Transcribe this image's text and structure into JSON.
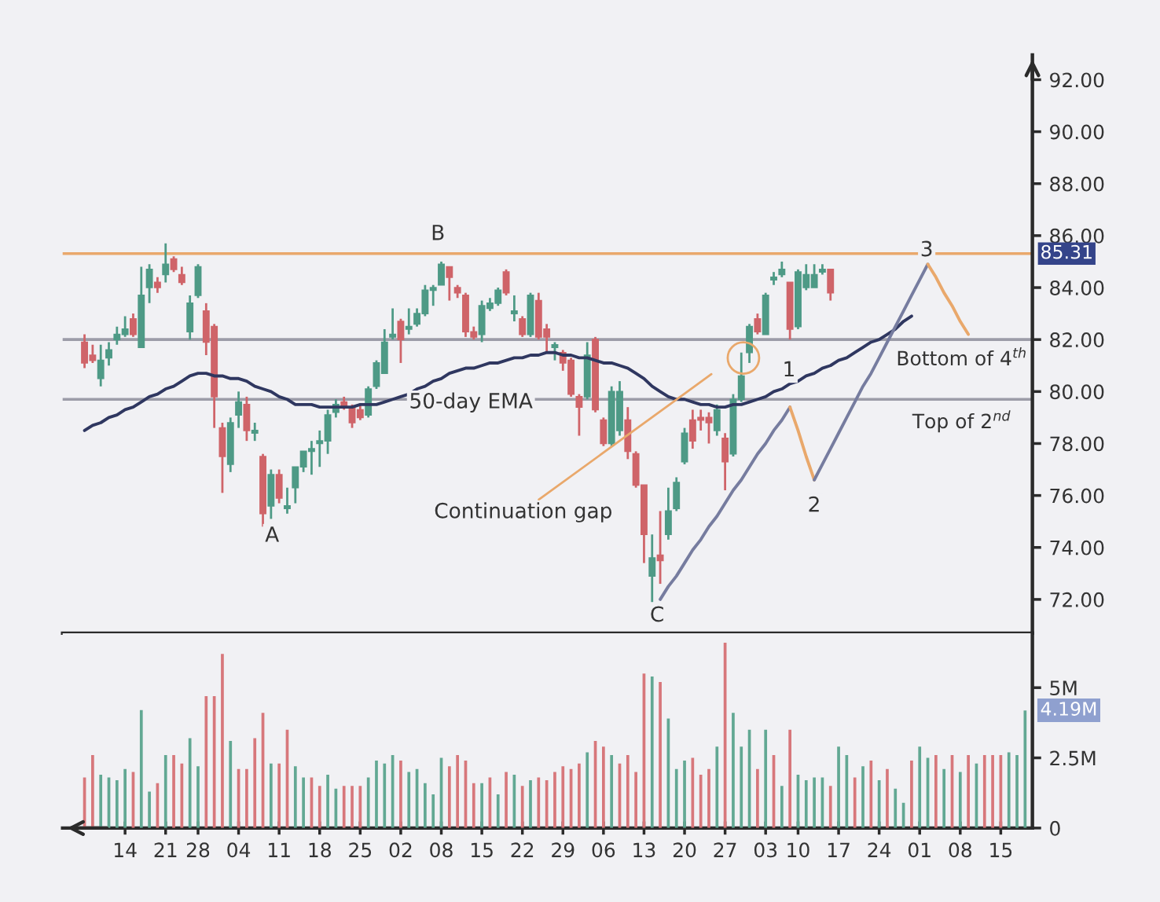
{
  "chart_data": [
    {
      "type": "candlestick",
      "categories": [
        null,
        null,
        null,
        null,
        null,
        "14",
        null,
        null,
        null,
        null,
        "21",
        null,
        null,
        null,
        "28",
        null,
        null,
        null,
        null,
        "04",
        null,
        null,
        null,
        null,
        "11",
        null,
        null,
        null,
        null,
        "18",
        null,
        null,
        null,
        null,
        "25",
        null,
        null,
        null,
        null,
        "02",
        null,
        null,
        null,
        null,
        "08",
        null,
        null,
        null,
        null,
        "15",
        null,
        null,
        null,
        null,
        "22",
        null,
        null,
        null,
        null,
        "29",
        null,
        null,
        null,
        null,
        "06",
        null,
        null,
        null,
        null,
        "13",
        null,
        null,
        null,
        null,
        "20",
        null,
        null,
        null,
        null,
        "27",
        null,
        null,
        null,
        null,
        "03",
        null,
        null,
        null,
        "10",
        null,
        null,
        null,
        null,
        "17",
        null,
        null,
        null,
        null,
        "24",
        null,
        null,
        null,
        null,
        "01",
        null,
        null,
        null,
        null,
        "08",
        null,
        null,
        null,
        null,
        "15",
        null,
        null,
        null
      ],
      "ohlc": [
        [
          81.9,
          82.2,
          80.9,
          81.1
        ],
        [
          81.4,
          81.8,
          81.1,
          81.2
        ],
        [
          80.5,
          81.8,
          80.2,
          81.2
        ],
        [
          81.3,
          81.9,
          81.0,
          81.6
        ],
        [
          82.0,
          82.5,
          81.8,
          82.2
        ],
        [
          82.2,
          82.9,
          82.1,
          82.4
        ],
        [
          82.8,
          83.0,
          82.1,
          82.2
        ],
        [
          81.7,
          84.8,
          81.7,
          83.7
        ],
        [
          84.0,
          84.9,
          83.4,
          84.7
        ],
        [
          84.2,
          84.4,
          83.8,
          84.0
        ],
        [
          84.5,
          85.7,
          84.2,
          84.9
        ],
        [
          85.1,
          85.2,
          84.6,
          84.7
        ],
        [
          84.5,
          84.8,
          84.1,
          84.2
        ],
        [
          82.3,
          83.7,
          82.0,
          83.4
        ],
        [
          83.7,
          84.9,
          83.6,
          84.8
        ],
        [
          83.1,
          83.4,
          81.4,
          81.9
        ],
        [
          82.5,
          82.6,
          78.6,
          79.8
        ],
        [
          78.6,
          78.8,
          76.1,
          77.5
        ],
        [
          77.2,
          79.0,
          76.9,
          78.8
        ],
        [
          79.1,
          80.0,
          78.6,
          79.6
        ],
        [
          79.5,
          79.8,
          78.1,
          78.5
        ],
        [
          78.4,
          78.8,
          78.1,
          78.5
        ],
        [
          77.5,
          77.6,
          74.8,
          75.3
        ],
        [
          75.6,
          77.0,
          75.1,
          76.8
        ],
        [
          76.8,
          77.0,
          75.7,
          75.9
        ],
        [
          75.5,
          76.3,
          75.3,
          75.6
        ],
        [
          76.3,
          77.1,
          75.7,
          77.1
        ],
        [
          77.1,
          77.7,
          76.9,
          77.7
        ],
        [
          77.7,
          78.1,
          76.8,
          77.8
        ],
        [
          78.0,
          78.5,
          77.1,
          78.1
        ],
        [
          78.1,
          79.3,
          77.6,
          79.1
        ],
        [
          79.2,
          79.7,
          79.0,
          79.5
        ],
        [
          79.6,
          79.8,
          79.3,
          79.4
        ],
        [
          79.4,
          79.5,
          78.6,
          78.8
        ],
        [
          79.3,
          79.5,
          78.9,
          79.0
        ],
        [
          79.1,
          80.2,
          79.0,
          80.1
        ],
        [
          80.2,
          81.2,
          80.1,
          81.1
        ],
        [
          80.7,
          82.4,
          80.7,
          81.9
        ],
        [
          82.1,
          83.2,
          82.0,
          82.2
        ],
        [
          82.7,
          82.8,
          81.1,
          82.0
        ],
        [
          82.4,
          83.2,
          82.2,
          82.5
        ],
        [
          82.6,
          83.2,
          82.5,
          83.0
        ],
        [
          83.0,
          84.1,
          82.9,
          83.9
        ],
        [
          83.9,
          84.1,
          83.3,
          84.0
        ],
        [
          84.1,
          85.0,
          84.1,
          84.9
        ],
        [
          84.8,
          84.8,
          83.5,
          84.4
        ],
        [
          84.0,
          84.1,
          83.6,
          83.8
        ],
        [
          83.7,
          83.8,
          82.1,
          82.3
        ],
        [
          82.3,
          82.5,
          82.0,
          82.1
        ],
        [
          82.2,
          83.5,
          81.9,
          83.3
        ],
        [
          83.2,
          83.6,
          83.1,
          83.4
        ],
        [
          83.4,
          84.0,
          83.3,
          83.9
        ],
        [
          84.6,
          84.7,
          83.7,
          83.8
        ],
        [
          83.0,
          83.7,
          82.7,
          83.1
        ],
        [
          82.8,
          82.9,
          82.1,
          82.2
        ],
        [
          82.2,
          83.8,
          82.1,
          83.7
        ],
        [
          83.5,
          83.8,
          82.0,
          82.1
        ],
        [
          82.4,
          82.6,
          81.5,
          82.1
        ],
        [
          81.7,
          81.9,
          81.2,
          81.8
        ],
        [
          81.5,
          81.6,
          80.8,
          81.1
        ],
        [
          81.2,
          81.3,
          79.8,
          79.9
        ],
        [
          79.8,
          79.9,
          78.3,
          79.4
        ],
        [
          79.8,
          81.9,
          79.7,
          81.4
        ],
        [
          82.0,
          82.1,
          79.2,
          79.3
        ],
        [
          78.9,
          79.0,
          77.9,
          78.0
        ],
        [
          78.0,
          80.2,
          77.9,
          80.0
        ],
        [
          78.5,
          80.4,
          78.3,
          80.0
        ],
        [
          78.9,
          79.4,
          77.4,
          77.7
        ],
        [
          77.6,
          77.7,
          76.3,
          76.4
        ],
        [
          76.4,
          76.4,
          73.4,
          74.5
        ],
        [
          72.9,
          74.5,
          71.9,
          73.6
        ],
        [
          73.7,
          75.4,
          72.6,
          73.5
        ],
        [
          74.5,
          76.3,
          74.3,
          75.4
        ],
        [
          75.5,
          76.7,
          75.4,
          76.5
        ],
        [
          77.3,
          78.6,
          77.2,
          78.4
        ],
        [
          78.9,
          79.3,
          77.8,
          78.1
        ],
        [
          79.0,
          79.3,
          78.5,
          78.9
        ],
        [
          79.0,
          79.2,
          78.0,
          78.8
        ],
        [
          78.5,
          79.5,
          78.3,
          79.3
        ],
        [
          78.2,
          78.4,
          76.2,
          77.3
        ],
        [
          77.6,
          79.9,
          77.5,
          79.7
        ],
        [
          79.7,
          81.5,
          79.6,
          80.6
        ],
        [
          81.5,
          82.6,
          81.1,
          82.5
        ],
        [
          82.8,
          83.0,
          82.2,
          82.3
        ],
        [
          82.2,
          83.8,
          82.2,
          83.7
        ],
        [
          84.3,
          84.6,
          84.1,
          84.4
        ],
        [
          84.5,
          85.0,
          84.4,
          84.7
        ],
        [
          84.2,
          84.2,
          82.0,
          82.4
        ],
        [
          82.5,
          84.7,
          82.4,
          84.6
        ],
        [
          84.0,
          84.9,
          83.9,
          84.5
        ],
        [
          84.0,
          84.9,
          84.0,
          84.5
        ],
        [
          84.6,
          84.9,
          84.5,
          84.7
        ],
        [
          84.7,
          84.7,
          83.5,
          83.8
        ],
        null,
        null,
        null,
        null,
        null,
        null,
        null,
        null,
        null,
        null,
        null,
        null,
        null,
        null,
        null,
        null,
        null,
        null,
        null,
        null,
        null,
        null,
        null,
        null
      ],
      "colors": [
        "#cf6469",
        "#cf6469",
        "#4e9a86",
        "#4e9a86",
        "#4e9a86",
        "#4e9a86",
        "#cf6469",
        "#4e9a86",
        "#4e9a86",
        "#cf6469",
        "#4e9a86",
        "#cf6469",
        "#cf6469",
        "#4e9a86",
        "#4e9a86",
        "#cf6469",
        "#cf6469",
        "#cf6469",
        "#4e9a86",
        "#4e9a86",
        "#cf6469",
        "#4e9a86",
        "#cf6469",
        "#4e9a86",
        "#cf6469",
        "#4e9a86",
        "#4e9a86",
        "#4e9a86",
        "#4e9a86",
        "#4e9a86",
        "#4e9a86",
        "#4e9a86",
        "#cf6469",
        "#cf6469",
        "#cf6469",
        "#4e9a86",
        "#4e9a86",
        "#4e9a86",
        "#4e9a86",
        "#cf6469",
        "#4e9a86",
        "#4e9a86",
        "#4e9a86",
        "#4e9a86",
        "#4e9a86",
        "#cf6469",
        "#cf6469",
        "#cf6469",
        "#cf6469",
        "#4e9a86",
        "#4e9a86",
        "#4e9a86",
        "#cf6469",
        "#4e9a86",
        "#cf6469",
        "#4e9a86",
        "#cf6469",
        "#cf6469",
        "#4e9a86",
        "#cf6469",
        "#cf6469",
        "#cf6469",
        "#4e9a86",
        "#cf6469",
        "#cf6469",
        "#4e9a86",
        "#4e9a86",
        "#cf6469",
        "#cf6469",
        "#cf6469",
        "#4e9a86",
        "#cf6469",
        "#4e9a86",
        "#4e9a86",
        "#4e9a86",
        "#cf6469",
        "#cf6469",
        "#cf6469",
        "#4e9a86",
        "#cf6469",
        "#4e9a86",
        "#4e9a86",
        "#4e9a86",
        "#cf6469",
        "#4e9a86",
        "#4e9a86",
        "#4e9a86",
        "#cf6469",
        "#4e9a86",
        "#4e9a86",
        "#4e9a86",
        "#4e9a86",
        "#cf6469",
        null,
        null,
        null,
        null,
        null,
        null,
        null,
        null,
        null,
        null,
        null,
        null,
        null,
        null,
        null,
        null,
        null,
        null,
        null,
        null,
        null,
        null,
        null,
        null
      ],
      "series": [
        {
          "type": "line",
          "color": "#2f3760",
          "values": [
            78.5,
            78.7,
            78.8,
            79.0,
            79.1,
            79.3,
            79.4,
            79.6,
            79.8,
            79.9,
            80.1,
            80.2,
            80.4,
            80.6,
            80.7,
            80.7,
            80.6,
            80.6,
            80.5,
            80.5,
            80.4,
            80.2,
            80.1,
            80.0,
            79.8,
            79.7,
            79.5,
            79.5,
            79.5,
            79.4,
            79.4,
            79.4,
            79.4,
            79.4,
            79.5,
            79.5,
            79.5,
            79.6,
            79.7,
            79.8,
            79.9,
            80.1,
            80.2,
            80.4,
            80.5,
            80.7,
            80.8,
            80.9,
            80.9,
            81.0,
            81.1,
            81.1,
            81.2,
            81.3,
            81.3,
            81.4,
            81.4,
            81.5,
            81.5,
            81.4,
            81.4,
            81.3,
            81.3,
            81.2,
            81.1,
            81.1,
            81.0,
            80.9,
            80.7,
            80.5,
            80.2,
            80.0,
            79.8,
            79.7,
            79.7,
            79.6,
            79.5,
            79.5,
            79.4,
            79.4,
            79.5,
            79.5,
            79.6,
            79.7,
            79.8,
            80.0,
            80.1,
            80.3,
            80.4,
            80.6,
            80.7,
            80.9,
            81.0,
            81.2,
            81.3,
            81.5,
            81.7,
            81.9,
            82.0,
            82.2,
            82.4,
            82.7,
            82.9,
            null,
            null,
            null,
            null,
            null,
            null,
            null,
            null,
            null,
            null,
            null,
            null,
            null,
            null
          ]
        },
        {
          "type": "line",
          "color": "#767c9f",
          "values": [
            null,
            null,
            null,
            null,
            null,
            null,
            null,
            null,
            null,
            null,
            null,
            null,
            null,
            null,
            null,
            null,
            null,
            null,
            null,
            null,
            null,
            null,
            null,
            null,
            null,
            null,
            null,
            null,
            null,
            null,
            null,
            null,
            null,
            null,
            null,
            null,
            null,
            null,
            null,
            null,
            null,
            null,
            null,
            null,
            null,
            null,
            null,
            null,
            null,
            null,
            null,
            null,
            null,
            null,
            null,
            null,
            null,
            null,
            null,
            null,
            null,
            null,
            null,
            null,
            null,
            null,
            null,
            null,
            null,
            null,
            null,
            72.0,
            72.5,
            72.9,
            73.4,
            73.9,
            74.3,
            74.8,
            75.2,
            75.7,
            76.2,
            76.6,
            77.1,
            77.6,
            78.0,
            78.5,
            78.9,
            79.4,
            null,
            null,
            null,
            null,
            null,
            null,
            null,
            null,
            null,
            null,
            null,
            null,
            null,
            null,
            null,
            null,
            null,
            null,
            null,
            null,
            null,
            null,
            null,
            null,
            null,
            null,
            null,
            null,
            null
          ]
        },
        {
          "type": "line",
          "color": "#e9a86b",
          "values": [
            null,
            null,
            null,
            null,
            null,
            null,
            null,
            null,
            null,
            null,
            null,
            null,
            null,
            null,
            null,
            null,
            null,
            null,
            null,
            null,
            null,
            null,
            null,
            null,
            null,
            null,
            null,
            null,
            null,
            null,
            null,
            null,
            null,
            null,
            null,
            null,
            null,
            null,
            null,
            null,
            null,
            null,
            null,
            null,
            null,
            null,
            null,
            null,
            null,
            null,
            null,
            null,
            null,
            null,
            null,
            null,
            null,
            null,
            null,
            null,
            null,
            null,
            null,
            null,
            null,
            null,
            null,
            null,
            null,
            null,
            null,
            null,
            null,
            null,
            null,
            null,
            null,
            null,
            null,
            null,
            null,
            null,
            null,
            null,
            null,
            null,
            null,
            79.4,
            78.5,
            77.5,
            76.6,
            null,
            null,
            null,
            null,
            null,
            null,
            null,
            null,
            null,
            null,
            null,
            null,
            null,
            null,
            null,
            null,
            null,
            null,
            null,
            null,
            null,
            null,
            null,
            null,
            null,
            null
          ]
        },
        {
          "type": "line",
          "color": "#767c9f",
          "values": [
            null,
            null,
            null,
            null,
            null,
            null,
            null,
            null,
            null,
            null,
            null,
            null,
            null,
            null,
            null,
            null,
            null,
            null,
            null,
            null,
            null,
            null,
            null,
            null,
            null,
            null,
            null,
            null,
            null,
            null,
            null,
            null,
            null,
            null,
            null,
            null,
            null,
            null,
            null,
            null,
            null,
            null,
            null,
            null,
            null,
            null,
            null,
            null,
            null,
            null,
            null,
            null,
            null,
            null,
            null,
            null,
            null,
            null,
            null,
            null,
            null,
            null,
            null,
            null,
            null,
            null,
            null,
            null,
            null,
            null,
            null,
            null,
            null,
            null,
            null,
            null,
            null,
            null,
            null,
            null,
            null,
            null,
            null,
            null,
            null,
            null,
            null,
            null,
            null,
            null,
            76.6,
            77.2,
            77.8,
            78.4,
            79.0,
            79.6,
            80.2,
            80.7,
            81.3,
            81.9,
            82.5,
            83.1,
            83.7,
            84.3,
            84.9,
            null,
            null,
            null,
            null,
            null,
            null,
            null,
            null,
            null,
            null,
            null,
            null
          ]
        },
        {
          "type": "line",
          "color": "#e9a86b",
          "values": [
            null,
            null,
            null,
            null,
            null,
            null,
            null,
            null,
            null,
            null,
            null,
            null,
            null,
            null,
            null,
            null,
            null,
            null,
            null,
            null,
            null,
            null,
            null,
            null,
            null,
            null,
            null,
            null,
            null,
            null,
            null,
            null,
            null,
            null,
            null,
            null,
            null,
            null,
            null,
            null,
            null,
            null,
            null,
            null,
            null,
            null,
            null,
            null,
            null,
            null,
            null,
            null,
            null,
            null,
            null,
            null,
            null,
            null,
            null,
            null,
            null,
            null,
            null,
            null,
            null,
            null,
            null,
            null,
            null,
            null,
            null,
            null,
            null,
            null,
            null,
            null,
            null,
            null,
            null,
            null,
            null,
            null,
            null,
            null,
            null,
            null,
            null,
            null,
            null,
            null,
            null,
            null,
            null,
            null,
            null,
            null,
            null,
            null,
            null,
            null,
            null,
            null,
            null,
            null,
            84.9,
            84.4,
            83.8,
            83.3,
            82.7,
            82.2,
            null,
            null,
            null,
            null,
            null,
            null,
            null
          ]
        }
      ],
      "ref_lines": [
        {
          "axis": "y",
          "value": 85.31,
          "label": "85.31",
          "color": "#e9a86b"
        },
        {
          "axis": "y",
          "value": 82.0,
          "label": "Bottom of 4$^{th}$",
          "color": "#9c9ca8"
        },
        {
          "axis": "y",
          "value": 79.7,
          "label": "Top of 2$^{nd}$",
          "color": "#9c9ca8"
        }
      ],
      "annotations": [
        "A",
        "B",
        "C",
        "1",
        "2",
        "3",
        "50-day EMA",
        "Continuation gap"
      ],
      "ylim": [
        70.7,
        92.95
      ],
      "yticks": [
        {
          "value": 72,
          "label": "72.00"
        },
        {
          "value": 74,
          "label": "74.00"
        },
        {
          "value": 76,
          "label": "76.00"
        },
        {
          "value": 78,
          "label": "78.00"
        },
        {
          "value": 80,
          "label": "80.00"
        },
        {
          "value": 82,
          "label": "82.00"
        },
        {
          "value": 84,
          "label": "84.00"
        },
        {
          "value": 86,
          "label": "86.00"
        },
        {
          "value": 88,
          "label": "88.00"
        },
        {
          "value": 90,
          "label": "90.00"
        },
        {
          "value": 92,
          "label": "92.00"
        }
      ],
      "tick_labels": "y"
    },
    {
      "type": "bar",
      "categories": [
        null,
        null,
        null,
        null,
        null,
        "14",
        null,
        null,
        null,
        null,
        "21",
        null,
        null,
        null,
        "28",
        null,
        null,
        null,
        null,
        "04",
        null,
        null,
        null,
        null,
        "11",
        null,
        null,
        null,
        null,
        "18",
        null,
        null,
        null,
        null,
        "25",
        null,
        null,
        null,
        null,
        "02",
        null,
        null,
        null,
        null,
        "08",
        null,
        null,
        null,
        null,
        "15",
        null,
        null,
        null,
        null,
        "22",
        null,
        null,
        null,
        null,
        "29",
        null,
        null,
        null,
        null,
        "06",
        null,
        null,
        null,
        null,
        "13",
        null,
        null,
        null,
        null,
        "20",
        null,
        null,
        null,
        null,
        "27",
        null,
        null,
        null,
        null,
        "03",
        null,
        null,
        null,
        "10",
        null,
        null,
        null,
        null,
        "17",
        null,
        null,
        null,
        null,
        "24",
        null,
        null,
        null,
        null,
        "01",
        null,
        null,
        null,
        null,
        "08",
        null,
        null,
        null,
        null,
        "15",
        null,
        null,
        null
      ],
      "values": [
        1.8,
        2.6,
        1.9,
        1.8,
        1.7,
        2.1,
        2.0,
        4.2,
        1.3,
        1.6,
        2.6,
        2.6,
        2.3,
        3.2,
        2.2,
        4.7,
        4.7,
        6.2,
        3.1,
        2.1,
        2.1,
        3.2,
        4.1,
        2.3,
        2.3,
        3.5,
        2.2,
        1.8,
        1.8,
        1.5,
        1.9,
        1.4,
        1.5,
        1.5,
        1.5,
        1.8,
        2.4,
        2.3,
        2.6,
        2.4,
        2.0,
        2.1,
        1.6,
        1.2,
        2.5,
        2.2,
        2.6,
        2.4,
        1.6,
        1.6,
        1.8,
        1.2,
        2.0,
        1.9,
        1.5,
        1.7,
        1.8,
        1.7,
        2.0,
        2.2,
        2.1,
        2.3,
        2.7,
        3.1,
        2.9,
        2.6,
        2.3,
        2.6,
        2.0,
        5.5,
        5.4,
        5.2,
        3.9,
        2.1,
        2.4,
        2.5,
        1.9,
        2.1,
        2.9,
        6.6,
        4.1,
        2.9,
        3.5,
        2.1,
        3.5,
        2.6,
        1.5,
        3.5,
        1.9,
        1.7,
        1.8,
        1.8,
        1.5,
        2.9,
        2.6,
        1.8,
        2.2,
        2.4,
        1.7,
        2.1,
        1.4,
        0.9,
        2.4,
        2.9,
        2.5,
        2.6,
        2.1,
        2.6,
        2.0,
        2.6,
        2.3,
        2.6,
        2.6,
        2.6,
        2.7,
        2.6,
        4.19
      ],
      "colors": [
        "#d7777b",
        "#d7777b",
        "#62a893",
        "#62a893",
        "#62a893",
        "#62a893",
        "#d7777b",
        "#62a893",
        "#62a893",
        "#d7777b",
        "#62a893",
        "#d7777b",
        "#d7777b",
        "#62a893",
        "#62a893",
        "#d7777b",
        "#d7777b",
        "#d7777b",
        "#62a893",
        "#d7777b",
        "#d7777b",
        "#d7777b",
        "#d7777b",
        "#62a893",
        "#d7777b",
        "#d7777b",
        "#62a893",
        "#62a893",
        "#d7777b",
        "#d7777b",
        "#62a893",
        "#62a893",
        "#d7777b",
        "#d7777b",
        "#d7777b",
        "#62a893",
        "#62a893",
        "#62a893",
        "#62a893",
        "#d7777b",
        "#62a893",
        "#62a893",
        "#62a893",
        "#62a893",
        "#62a893",
        "#d7777b",
        "#d7777b",
        "#d7777b",
        "#d7777b",
        "#62a893",
        "#d7777b",
        "#62a893",
        "#d7777b",
        "#62a893",
        "#d7777b",
        "#62a893",
        "#d7777b",
        "#d7777b",
        "#d7777b",
        "#d7777b",
        "#d7777b",
        "#d7777b",
        "#62a893",
        "#d7777b",
        "#d7777b",
        "#62a893",
        "#d7777b",
        "#d7777b",
        "#d7777b",
        "#d7777b",
        "#62a893",
        "#d7777b",
        "#62a893",
        "#62a893",
        "#62a893",
        "#d7777b",
        "#d7777b",
        "#d7777b",
        "#62a893",
        "#d7777b",
        "#62a893",
        "#62a893",
        "#62a893",
        "#d7777b",
        "#62a893",
        "#d7777b",
        "#62a893",
        "#d7777b",
        "#62a893",
        "#62a893",
        "#62a893",
        "#62a893",
        "#d7777b",
        "#62a893",
        "#62a893",
        "#d7777b",
        "#62a893",
        "#d7777b",
        "#62a893",
        "#d7777b",
        "#62a893",
        "#62a893",
        "#d7777b",
        "#62a893",
        "#62a893",
        "#d7777b",
        "#62a893",
        "#d7777b",
        "#62a893",
        "#d7777b",
        "#62a893",
        "#d7777b",
        "#d7777b",
        "#d7777b",
        "#62a893",
        "#62a893",
        "#62a893"
      ],
      "annotations": [
        "4.19M"
      ],
      "ylim": [
        0,
        6.94
      ],
      "yticks": [
        {
          "value": 0,
          "label": "0"
        },
        {
          "value": 2.5,
          "label": "2.5M"
        },
        {
          "value": 5,
          "label": "5M"
        }
      ]
    }
  ]
}
